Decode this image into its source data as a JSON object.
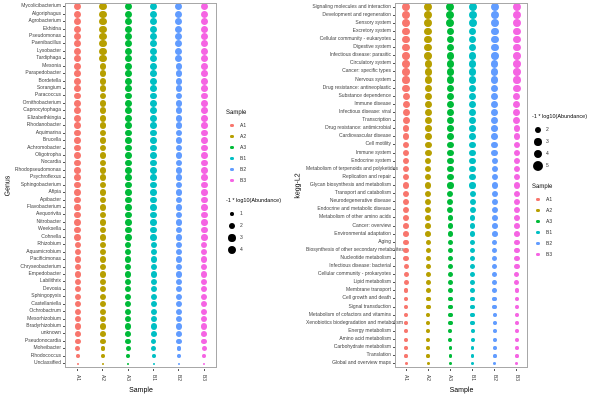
{
  "samples": [
    {
      "label": "A1",
      "color": "#F8766D"
    },
    {
      "label": "A2",
      "color": "#B79F00"
    },
    {
      "label": "A3",
      "color": "#00BA38"
    },
    {
      "label": "B1",
      "color": "#00BFC4"
    },
    {
      "label": "B2",
      "color": "#619CFF"
    },
    {
      "label": "B3",
      "color": "#F564E3"
    }
  ],
  "left_chart": {
    "y_axis_title": "Genus",
    "x_axis_title": "Sample"
  },
  "right_chart": {
    "y_axis_title": "kegg-L2",
    "x_axis_title": "Sample"
  },
  "left_legend": {
    "sample_title": "Sample",
    "size_title": "-1 * log10(Abundance)",
    "size_values": [
      1,
      2,
      3,
      4
    ]
  },
  "right_legend": {
    "size_title": "-1 * log10(Abundance)",
    "size_values": [
      2,
      3,
      4,
      5
    ],
    "sample_title": "Sample"
  },
  "chart_data": [
    {
      "type": "scatter",
      "subtype": "bubble-dotplot",
      "title": "",
      "xlabel": "Sample",
      "ylabel": "Genus",
      "x_categories": [
        "A1",
        "A2",
        "A3",
        "B1",
        "B2",
        "B3"
      ],
      "y_categories": [
        "Mycolicibacterium",
        "Algoriphagus",
        "Agrobacterium",
        "Ekhidna",
        "Pseudomonas",
        "Paenibacillus",
        "Lysobacter",
        "Tardiphaga",
        "Mesonia",
        "Parapedobacter",
        "Bordetella",
        "Sorangium",
        "Paracoccus",
        "Ornithobacterium",
        "Capnocytophaga",
        "Elizabethkingia",
        "Rhodanobacter",
        "Aquimarina",
        "Brucella",
        "Achromobacter",
        "Oligotropha",
        "Nocardia",
        "Rhodopseudomonas",
        "Psychroflexus",
        "Sphingobacterium",
        "Afipia",
        "Apibacter",
        "Flavobacterium",
        "Aequorivita",
        "Nitrobacter",
        "Weeksella",
        "Cohnella",
        "Rhizobium",
        "Aquamicrobium",
        "Pacificimonas",
        "Chryseobacterium",
        "Empedobacter",
        "Labilithrix",
        "Devosia",
        "Sphingopyxis",
        "Castellaniella",
        "Ochrobactrum",
        "Mesorhizobium",
        "Bradyrhizobium",
        "unknown",
        "Pseudonocardia",
        "Moheibacter",
        "Rhodococcus",
        "Unclassified"
      ],
      "size_variable": "-1 * log10(Abundance)",
      "size_legend_values": [
        1,
        2,
        3,
        4
      ],
      "row_sizes": [
        3.7,
        3.7,
        3.7,
        3.7,
        3.7,
        3.7,
        3.7,
        3.7,
        3.6,
        3.6,
        3.6,
        3.6,
        3.6,
        3.6,
        3.6,
        3.6,
        3.5,
        3.5,
        3.5,
        3.5,
        3.5,
        3.5,
        3.5,
        3.5,
        3.4,
        3.4,
        3.4,
        3.4,
        3.4,
        3.4,
        3.4,
        3.4,
        3.3,
        3.3,
        3.3,
        3.3,
        3.3,
        3.3,
        3.3,
        3.3,
        3.2,
        3.2,
        3.2,
        3.2,
        3.1,
        3.0,
        2.6,
        2.2,
        1.0
      ],
      "series_colors": [
        "#F8766D",
        "#B79F00",
        "#00BA38",
        "#00BFC4",
        "#619CFF",
        "#F564E3"
      ],
      "grid": false,
      "legend_position": "right"
    },
    {
      "type": "scatter",
      "subtype": "bubble-dotplot",
      "title": "",
      "xlabel": "Sample",
      "ylabel": "kegg-L2",
      "x_categories": [
        "A1",
        "A2",
        "A3",
        "B1",
        "B2",
        "B3"
      ],
      "y_categories": [
        "Signaling molecules and interaction",
        "Development and regeneration",
        "Sensory system",
        "Excretory system",
        "Cellular community - eukaryotes",
        "Digestive system",
        "Infectious disease: parasitic",
        "Circulatory system",
        "Cancer: specific types",
        "Nervous system",
        "Drug resistance: antineoplastic",
        "Substance dependence",
        "Immune disease",
        "Infectious disease: viral",
        "Transcription",
        "Drug resistance: antimicrobial",
        "Cardiovascular disease",
        "Cell motility",
        "Immune system",
        "Endocrine system",
        "Metabolism of terpenoids and polyketides",
        "Replication and repair",
        "Glycan biosynthesis and metabolism",
        "Transport and catabolism",
        "Neurodegenerative disease",
        "Endocrine and metabolic disease",
        "Metabolism of other amino acids",
        "Cancer: overview",
        "Environmental adaptation",
        "Aging",
        "Biosynthesis of other secondary metabolites",
        "Nucleotide metabolism",
        "Infectious disease: bacterial",
        "Cellular community - prokaryotes",
        "Lipid metabolism",
        "Membrane transport",
        "Cell growth and death",
        "Signal transduction",
        "Metabolism of cofactors and vitamins",
        "Xenobiotics biodegradation and metabolism",
        "Energy metabolism",
        "Amino acid metabolism",
        "Carbohydrate metabolism",
        "Translation",
        "Global and overview maps"
      ],
      "size_variable": "-1 * log10(Abundance)",
      "size_legend_values": [
        2,
        3,
        4,
        5
      ],
      "row_sizes": [
        4.9,
        4.8,
        4.8,
        4.7,
        4.7,
        4.6,
        4.6,
        4.5,
        4.5,
        4.4,
        4.4,
        4.3,
        4.3,
        4.2,
        4.2,
        4.1,
        4.1,
        4.0,
        4.0,
        3.9,
        3.9,
        3.8,
        3.8,
        3.7,
        3.6,
        3.6,
        3.5,
        3.4,
        3.4,
        3.3,
        3.2,
        3.2,
        3.1,
        3.0,
        3.0,
        2.9,
        2.8,
        2.8,
        2.7,
        2.6,
        2.5,
        2.4,
        2.3,
        2.2,
        1.8
      ],
      "series_colors": [
        "#F8766D",
        "#B79F00",
        "#00BA38",
        "#00BFC4",
        "#619CFF",
        "#F564E3"
      ],
      "grid": false,
      "legend_position": "right"
    }
  ]
}
